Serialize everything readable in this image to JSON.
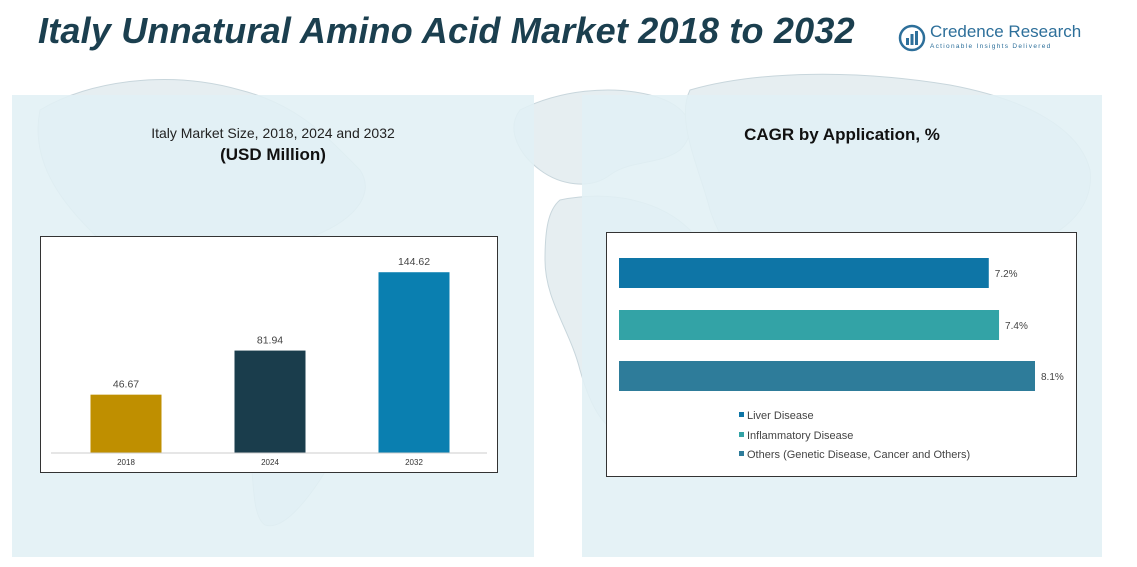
{
  "header": {
    "title": "Italy Unnatural Amino Acid Market 2018 to 2032",
    "logo_name": "Credence Research",
    "logo_tagline": "Actionable Insights Delivered"
  },
  "left_panel": {
    "title_line1": "Italy Market Size, 2018, 2024 and 2032",
    "title_line2": "(USD Million)"
  },
  "right_panel": {
    "title": "CAGR by Application, %"
  },
  "colors": {
    "title": "#1b3f4f",
    "panel_bg": "#e1f0f5",
    "bar_2018": "#bf8f00",
    "bar_2024": "#1a3d4c",
    "bar_2032": "#0a7fb0",
    "liver": "#0e75a6",
    "inflammatory": "#33a3a6",
    "others": "#2e7c9a"
  },
  "chart_data": [
    {
      "type": "bar",
      "title": "Italy Market Size, 2018, 2024 and 2032",
      "subtitle": "(USD Million)",
      "categories": [
        "2018",
        "2024",
        "2032"
      ],
      "values": [
        46.67,
        81.94,
        144.62
      ],
      "value_labels": [
        "46.67",
        "81.94",
        "144.62"
      ],
      "colors": [
        "#bf8f00",
        "#1a3d4c",
        "#0a7fb0"
      ],
      "ylim": [
        0,
        160
      ],
      "grid": false
    },
    {
      "type": "bar",
      "orientation": "horizontal",
      "title": "CAGR by Application, %",
      "series": [
        {
          "name": "Liver Disease",
          "value": 7.2,
          "label": "7.2%",
          "color": "#0e75a6"
        },
        {
          "name": "Inflammatory Disease",
          "value": 7.4,
          "label": "7.4%",
          "color": "#33a3a6"
        },
        {
          "name": "Others (Genetic Disease, Cancer and Others)",
          "value": 8.1,
          "label": "8.1%",
          "color": "#2e7c9a"
        }
      ],
      "xlim": [
        0,
        8.2
      ],
      "legend_position": "bottom",
      "grid": false
    }
  ]
}
